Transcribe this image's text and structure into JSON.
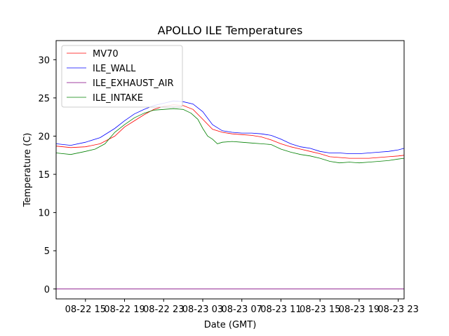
{
  "chart_data": {
    "type": "line",
    "title": "APOLLO ILE Temperatures",
    "xlabel": "Date (GMT)",
    "ylabel": "Temperature (C)",
    "xlim": [
      12.0,
      47.6
    ],
    "ylim": [
      -1.3,
      32.5
    ],
    "x_unit": "hours since 08-22 00:00 GMT",
    "grid": false,
    "legend_position": "top-left",
    "x_ticks": [
      {
        "value": 15,
        "label": "08-22 15"
      },
      {
        "value": 19,
        "label": "08-22 19"
      },
      {
        "value": 23,
        "label": "08-22 23"
      },
      {
        "value": 27,
        "label": "08-23 03"
      },
      {
        "value": 31,
        "label": "08-23 07"
      },
      {
        "value": 35,
        "label": "08-23 11"
      },
      {
        "value": 39,
        "label": "08-23 15"
      },
      {
        "value": 43,
        "label": "08-23 19"
      },
      {
        "value": 47,
        "label": "08-23 23"
      }
    ],
    "y_ticks": [
      {
        "value": 0,
        "label": "0"
      },
      {
        "value": 5,
        "label": "5"
      },
      {
        "value": 10,
        "label": "10"
      },
      {
        "value": 15,
        "label": "15"
      },
      {
        "value": 20,
        "label": "20"
      },
      {
        "value": 25,
        "label": "25"
      },
      {
        "value": 30,
        "label": "30"
      }
    ],
    "series": [
      {
        "name": "MV70",
        "color": "#ff0000",
        "x": [
          12.0,
          13.5,
          15.0,
          16.5,
          18.0,
          19.0,
          20.0,
          21.0,
          22.0,
          23.0,
          24.0,
          25.0,
          26.0,
          27.0,
          28.0,
          29.0,
          30.0,
          31.0,
          32.0,
          33.0,
          34.0,
          35.0,
          36.0,
          37.0,
          38.0,
          39.0,
          40.0,
          41.0,
          42.0,
          43.0,
          44.0,
          45.0,
          46.0,
          47.0,
          47.6
        ],
        "values": [
          18.7,
          18.5,
          18.6,
          19.0,
          20.0,
          21.2,
          22.0,
          22.8,
          23.5,
          23.9,
          24.1,
          24.0,
          23.5,
          22.2,
          20.9,
          20.5,
          20.3,
          20.2,
          20.1,
          19.9,
          19.5,
          19.0,
          18.6,
          18.3,
          18.0,
          17.7,
          17.3,
          17.2,
          17.1,
          17.1,
          17.1,
          17.2,
          17.3,
          17.4,
          17.5
        ]
      },
      {
        "name": "ILE_WALL",
        "color": "#0000ff",
        "x": [
          12.0,
          13.5,
          15.0,
          16.5,
          18.0,
          19.0,
          20.0,
          21.0,
          22.0,
          23.0,
          24.0,
          25.0,
          26.0,
          27.0,
          28.0,
          29.0,
          30.0,
          31.0,
          32.0,
          33.0,
          34.0,
          35.0,
          36.0,
          37.0,
          38.0,
          39.0,
          40.0,
          41.0,
          42.0,
          43.0,
          44.0,
          45.0,
          46.0,
          47.0,
          47.6
        ],
        "values": [
          19.0,
          18.8,
          19.2,
          19.8,
          21.0,
          22.0,
          22.9,
          23.5,
          24.0,
          24.3,
          24.6,
          24.5,
          24.2,
          23.2,
          21.5,
          20.7,
          20.5,
          20.4,
          20.4,
          20.3,
          20.1,
          19.6,
          19.0,
          18.6,
          18.4,
          18.0,
          17.8,
          17.8,
          17.7,
          17.7,
          17.8,
          17.9,
          18.0,
          18.2,
          18.4
        ]
      },
      {
        "name": "ILE_EXHAUST_AIR",
        "color": "#800080",
        "x": [
          12.0,
          47.6
        ],
        "values": [
          0.0,
          0.0
        ]
      },
      {
        "name": "ILE_INTAKE",
        "color": "#008000",
        "x": [
          12.0,
          13.5,
          15.0,
          16.0,
          17.0,
          18.0,
          19.0,
          20.0,
          21.0,
          22.0,
          23.0,
          24.0,
          25.0,
          25.8,
          26.5,
          27.0,
          27.5,
          28.0,
          28.5,
          29.0,
          30.0,
          31.0,
          32.0,
          33.0,
          34.0,
          35.0,
          36.0,
          37.0,
          38.0,
          39.0,
          40.0,
          41.0,
          42.0,
          43.0,
          44.0,
          45.0,
          46.0,
          47.0,
          47.6
        ],
        "values": [
          17.8,
          17.6,
          18.0,
          18.3,
          19.0,
          20.5,
          21.5,
          22.4,
          23.0,
          23.4,
          23.5,
          23.6,
          23.5,
          23.0,
          22.2,
          21.0,
          20.0,
          19.6,
          19.0,
          19.2,
          19.3,
          19.2,
          19.1,
          19.0,
          18.9,
          18.3,
          17.9,
          17.6,
          17.4,
          17.1,
          16.7,
          16.5,
          16.6,
          16.5,
          16.6,
          16.7,
          16.8,
          17.0,
          17.1
        ]
      }
    ]
  }
}
